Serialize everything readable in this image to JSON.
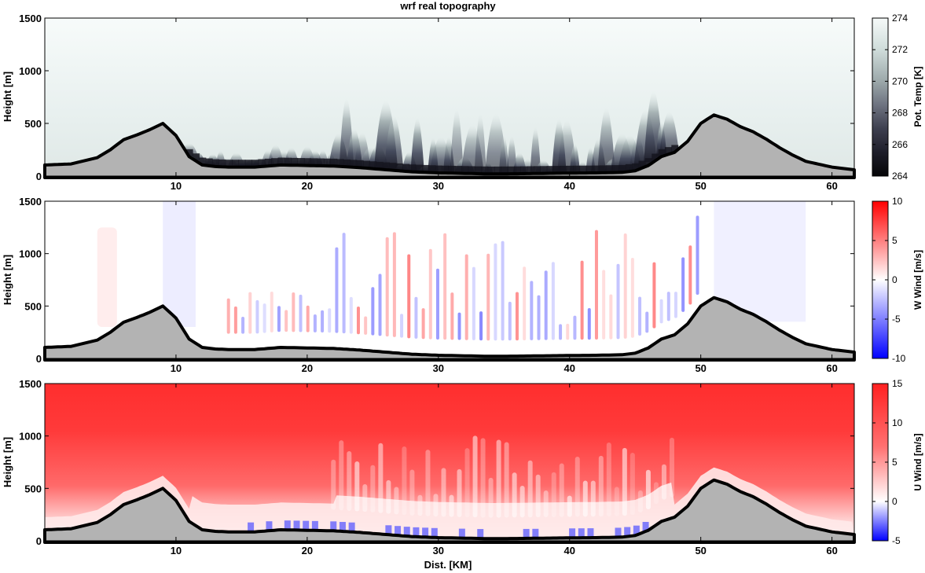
{
  "title": "wrf real topography",
  "xlabel": "Dist. [KM]",
  "colors": {
    "terrain_fill": "#b3b3b3",
    "terrain_line": "#000000",
    "w_positive": "#ff0000",
    "w_negative": "#0000ff",
    "u_positive": "#ff0000",
    "u_negative": "#0000ff",
    "temp_dark": "#050507",
    "temp_light": "#f4f8f7"
  },
  "chart_data": [
    {
      "type": "heatmap",
      "name": "potential-temperature",
      "ylabel": "Height [m]",
      "colorbar_label": "Pot. Temp [K]",
      "colorbar_ticks": [
        "264",
        "266",
        "268",
        "270",
        "272",
        "274"
      ],
      "colorbar_range": [
        264,
        274
      ],
      "x_ticks": [
        "10",
        "20",
        "30",
        "40",
        "50",
        "60"
      ],
      "y_ticks": [
        "0",
        "500",
        "1000",
        "1500"
      ],
      "xlim": [
        0,
        61.7
      ],
      "ylim": [
        0,
        1500
      ],
      "grid": false
    },
    {
      "type": "heatmap",
      "name": "vertical-wind",
      "ylabel": "Height [m]",
      "colorbar_label": "W Wind [m/s]",
      "colorbar_ticks": [
        "-10",
        "-5",
        "0",
        "5",
        "10"
      ],
      "colorbar_range": [
        -10,
        10
      ],
      "x_ticks": [
        "10",
        "20",
        "30",
        "40",
        "50",
        "60"
      ],
      "y_ticks": [
        "0",
        "500",
        "1000",
        "1500"
      ],
      "xlim": [
        0,
        61.7
      ],
      "ylim": [
        0,
        1500
      ],
      "grid": false
    },
    {
      "type": "heatmap",
      "name": "horizontal-wind",
      "ylabel": "Height [m]",
      "colorbar_label": "U Wind [m/s]",
      "colorbar_ticks": [
        "-5",
        "0",
        "5",
        "10",
        "15"
      ],
      "colorbar_range": [
        -5,
        15
      ],
      "x_ticks": [
        "10",
        "20",
        "30",
        "40",
        "50",
        "60"
      ],
      "y_ticks": [
        "0",
        "500",
        "1000",
        "1500"
      ],
      "xlim": [
        0,
        61.7
      ],
      "ylim": [
        0,
        1500
      ],
      "grid": false
    }
  ],
  "terrain_profile": {
    "x_km": [
      0,
      2,
      4,
      5,
      6,
      7,
      8,
      9,
      10,
      11,
      12,
      13,
      14,
      16,
      18,
      20,
      22,
      24,
      26,
      28,
      30,
      32,
      34,
      36,
      38,
      40,
      42,
      44,
      45,
      46,
      47,
      48,
      49,
      50,
      51,
      52,
      53,
      54,
      55,
      56,
      57,
      58,
      60,
      61.7
    ],
    "height_m": [
      105,
      115,
      175,
      250,
      345,
      390,
      440,
      500,
      385,
      185,
      105,
      90,
      85,
      85,
      105,
      100,
      95,
      80,
      60,
      40,
      30,
      25,
      20,
      22,
      25,
      28,
      30,
      35,
      50,
      100,
      185,
      225,
      330,
      500,
      580,
      540,
      470,
      420,
      350,
      270,
      200,
      140,
      85,
      60
    ]
  }
}
